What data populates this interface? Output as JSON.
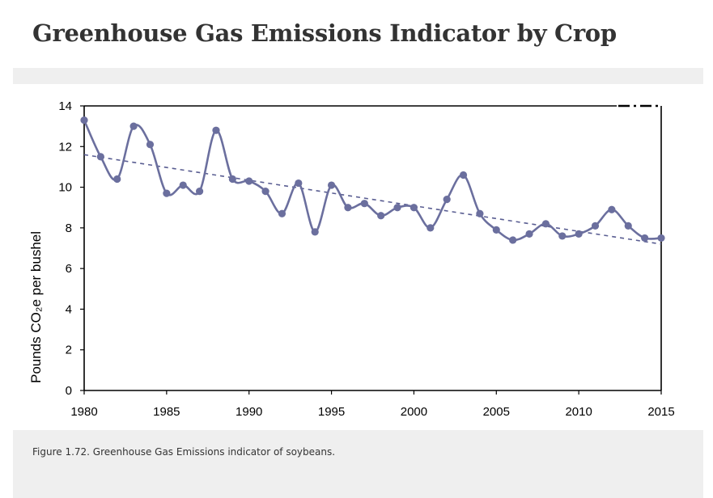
{
  "page": {
    "title": "Greenhouse Gas Emissions Indicator by Crop",
    "caption": "Figure 1.72. Greenhouse Gas Emissions indicator of soybeans."
  },
  "colors": {
    "series": "#6b6f9e",
    "trend": "#5a5e92",
    "axis": "#000000",
    "band": "#efefef",
    "title": "#333333"
  },
  "chart_data": {
    "type": "line",
    "title": "",
    "xlabel": "",
    "ylabel": "Pounds CO₂e per bushel",
    "xlim": [
      1980,
      2015
    ],
    "ylim": [
      0,
      14
    ],
    "x_ticks": [
      1980,
      1985,
      1990,
      1995,
      2000,
      2005,
      2010,
      2015
    ],
    "y_ticks": [
      0,
      2,
      4,
      6,
      8,
      10,
      12,
      14
    ],
    "grid": false,
    "legend": "none",
    "smooth": true,
    "series": [
      {
        "x": [
          1980,
          1981,
          1982,
          1983,
          1984,
          1985,
          1986,
          1987,
          1988,
          1989,
          1990,
          1991,
          1992,
          1993,
          1994,
          1995,
          1996,
          1997,
          1998,
          1999,
          2000,
          2001,
          2002,
          2003,
          2004,
          2005,
          2006,
          2007,
          2008,
          2009,
          2010,
          2011,
          2012,
          2013,
          2014,
          2015
        ],
        "y": [
          13.3,
          11.5,
          10.4,
          13.0,
          12.1,
          9.7,
          10.1,
          9.8,
          12.8,
          10.4,
          10.3,
          9.8,
          8.7,
          10.2,
          7.8,
          10.1,
          9.0,
          9.2,
          8.6,
          9.0,
          9.0,
          8.0,
          9.4,
          10.6,
          8.7,
          7.9,
          7.4,
          7.7,
          8.2,
          7.6,
          7.7,
          8.1,
          8.9,
          8.1,
          7.5,
          7.5
        ]
      }
    ],
    "trendline": {
      "style": "dashed",
      "x": [
        1980,
        2015
      ],
      "y": [
        11.6,
        7.2
      ]
    }
  }
}
